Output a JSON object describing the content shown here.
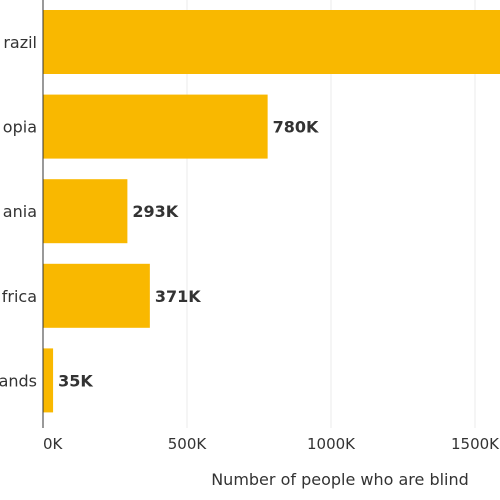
{
  "chart_data": {
    "type": "bar",
    "orientation": "horizontal",
    "categories": [
      "Brazil",
      "Ethiopia",
      "Tanzania",
      "South Africa",
      "Netherlands"
    ],
    "visible_category_text": [
      "razil",
      "opia",
      "ania",
      "frica",
      "ands"
    ],
    "values": [
      1600000,
      780000,
      293000,
      371000,
      35000
    ],
    "value_labels": [
      "",
      "780K",
      "293K",
      "371K",
      "35K"
    ],
    "xlabel": "Number of people who are blind",
    "xticks": [
      0,
      500000,
      1000000,
      1500000
    ],
    "xtick_labels": [
      "0K",
      "500K",
      "1000K",
      "1500K"
    ],
    "xlim": [
      0,
      1600000
    ],
    "grid": true,
    "bar_color": "#F9B800"
  }
}
